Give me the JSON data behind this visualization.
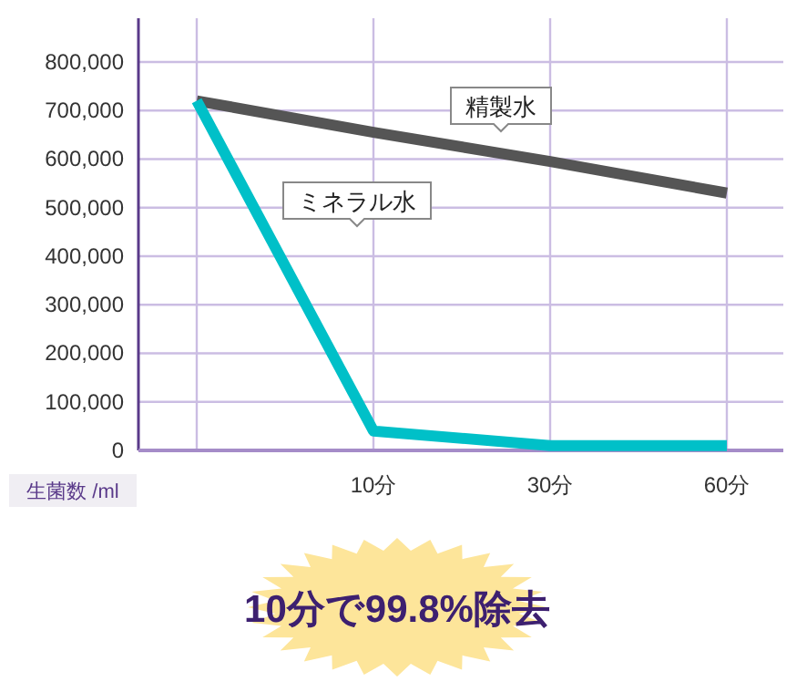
{
  "chart_data": {
    "type": "line",
    "categories": [
      null,
      "10分",
      "30分",
      "60分"
    ],
    "series": [
      {
        "name": "精製水",
        "color": "#555555",
        "values": [
          720000,
          655000,
          595000,
          530000
        ]
      },
      {
        "name": "ミネラル水",
        "color": "#00c0c8",
        "values": [
          720000,
          40000,
          10000,
          10000
        ]
      }
    ],
    "ylabel": "生菌数 /ml",
    "ylim": [
      0,
      890000
    ],
    "yticks": [
      0,
      {
        "value": 100000,
        "label": "100,000"
      },
      {
        "value": 200000,
        "label": "200,000"
      },
      {
        "value": 300000,
        "label": "300,000"
      },
      {
        "value": 400000,
        "label": "400,000"
      },
      {
        "value": 500000,
        "label": "500,000"
      },
      {
        "value": 600000,
        "label": "600,000"
      },
      {
        "value": 700000,
        "label": "700,000"
      },
      {
        "value": 800000,
        "label": "800,000"
      }
    ],
    "grid": true,
    "legend": false,
    "marker": "none",
    "line_style": "solid",
    "annotations": [
      "10分で99.8%除去"
    ]
  }
}
